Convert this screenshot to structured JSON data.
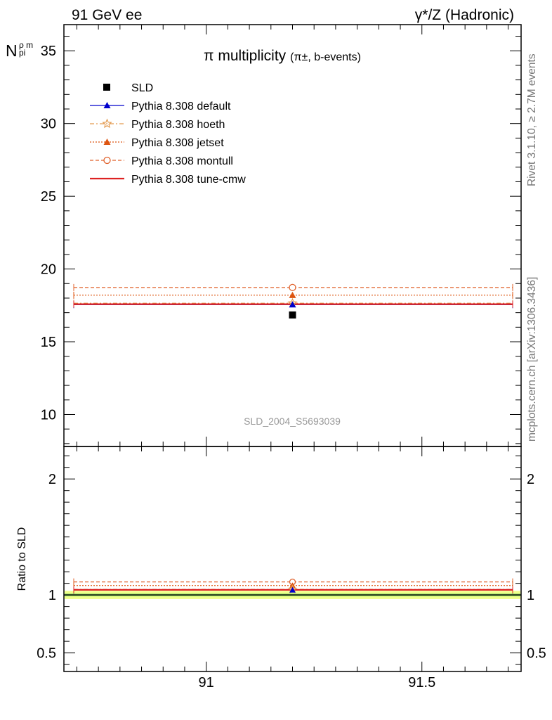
{
  "header": {
    "left": "91 GeV ee",
    "right": "γ*/Z (Hadronic)"
  },
  "side_text": {
    "rivet": "Rivet 3.1.10, ≥ 2.7M events",
    "mcplots": "mcplots.cern.ch [arXiv:1306.3436]"
  },
  "chart_data": {
    "type": "scatter",
    "title_main": "π multiplicity",
    "title_sub": "(π±, b-events)",
    "watermark": "SLD_2004_S5693039",
    "ylabel_top": "N",
    "ylabel_top_sub": "pi",
    "ylabel_top_sub2": "ρ m",
    "ylabel_bottom": "Ratio to SLD",
    "x_range": [
      90.67,
      91.73
    ],
    "x_ticks": [
      91,
      91.5
    ],
    "x_tick_labels": [
      "91",
      "91.5"
    ],
    "top_y_range": [
      7.8,
      36.8
    ],
    "top_y_ticks": [
      10,
      15,
      20,
      25,
      30,
      35
    ],
    "top_y_tick_labels": [
      "10",
      "15",
      "20",
      "25",
      "30",
      "35"
    ],
    "ratio_y_range": [
      0.34,
      2.28
    ],
    "ratio_y_ticks": [
      0.5,
      1,
      2
    ],
    "ratio_y_tick_labels": [
      "0.5",
      "1",
      "2"
    ],
    "legend_position": "top-left",
    "data": {
      "name": "SLD",
      "x": 91.2,
      "y": 16.84,
      "color": "#000000"
    },
    "series": [
      {
        "name": "Pythia 8.308 default",
        "y": 17.55,
        "ratio": 1.042,
        "color": "#0000cc",
        "dash": "none",
        "marker": "triangle"
      },
      {
        "name": "Pythia 8.308 hoeth",
        "y": 17.65,
        "ratio": 1.048,
        "color": "#e39a4f",
        "dash": "6,3,2,3",
        "marker": "star"
      },
      {
        "name": "Pythia 8.308 jetset",
        "y": 18.2,
        "ratio": 1.081,
        "color": "#dd5511",
        "dash": "2,2",
        "marker": "triangle"
      },
      {
        "name": "Pythia 8.308 montull",
        "y": 18.73,
        "ratio": 1.112,
        "color": "#e0602a",
        "dash": "5,3",
        "marker": "circle"
      },
      {
        "name": "Pythia 8.308 tune-cmw",
        "y": 17.58,
        "ratio": 1.044,
        "color": "#dd2222",
        "dash": "none",
        "marker": "none"
      }
    ]
  }
}
